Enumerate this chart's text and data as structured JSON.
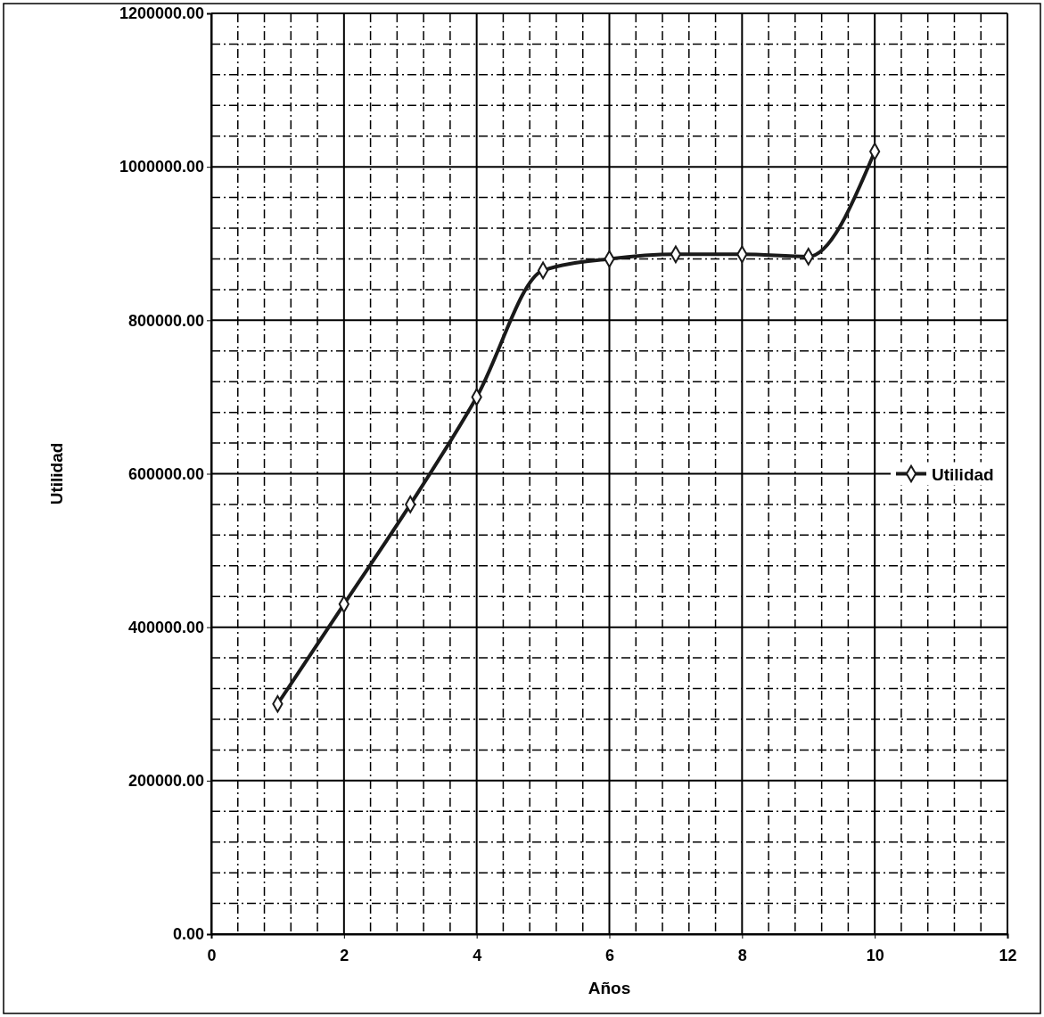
{
  "chart_data": {
    "type": "line",
    "xlabel": "Años",
    "ylabel": "Utilidad",
    "x": [
      1,
      2,
      3,
      4,
      5,
      6,
      7,
      8,
      9,
      10
    ],
    "series": [
      {
        "name": "Utilidad",
        "color": "#1a1a1a",
        "values": [
          300000,
          430000,
          560000,
          700000,
          865000,
          880000,
          886000,
          886000,
          883000,
          1020000
        ]
      }
    ],
    "xlim": [
      0,
      12
    ],
    "xticks": [
      0,
      2,
      4,
      6,
      8,
      10,
      12
    ],
    "ylim": [
      0,
      1200000
    ],
    "yticks": [
      {
        "value": 0,
        "label": "0.00"
      },
      {
        "value": 200000,
        "label": "200000.00"
      },
      {
        "value": 400000,
        "label": "400000.00"
      },
      {
        "value": 600000,
        "label": "600000.00"
      },
      {
        "value": 800000,
        "label": "800000.00"
      },
      {
        "value": 1000000,
        "label": "1000000.00"
      },
      {
        "value": 1200000,
        "label": "1200000.00"
      }
    ],
    "grid": true,
    "legend": "right",
    "marker": "diamond",
    "line_style": "solid"
  }
}
